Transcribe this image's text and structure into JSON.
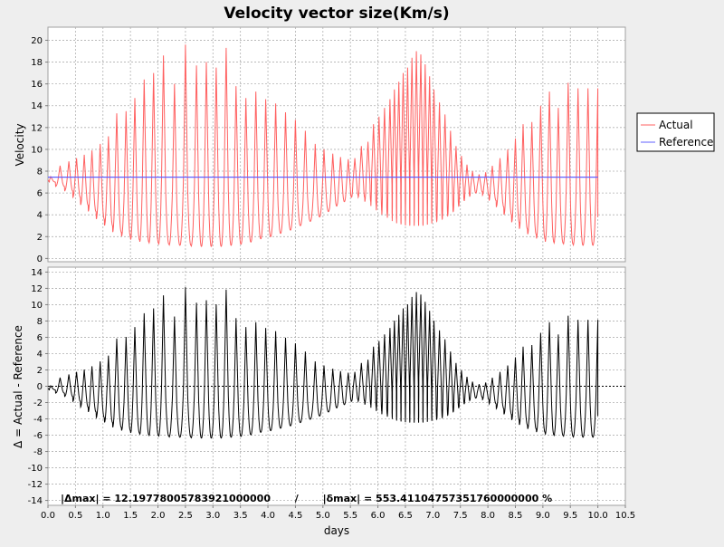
{
  "chart_data": {
    "type": "line",
    "title": "Velocity vector size(Km/s)",
    "xlabel": "days",
    "x_ticks": [
      0.0,
      0.5,
      1.0,
      1.5,
      2.0,
      2.5,
      3.0,
      3.5,
      4.0,
      4.5,
      5.0,
      5.5,
      6.0,
      6.5,
      7.0,
      7.5,
      8.0,
      8.5,
      9.0,
      9.5,
      10.0,
      10.5
    ],
    "x_tick_labels": [
      "0.0",
      "0.5",
      "1.0",
      "1.5",
      "2.0",
      "2.5",
      "3.0",
      "3.5",
      "4.0",
      "4.5",
      "5.0",
      "5.5",
      "6.0",
      "6.5",
      "7.0",
      "7.5",
      "8.0",
      "8.5",
      "9.0",
      "9.5",
      "10.0",
      "10.5"
    ],
    "xlim": [
      0,
      10.5
    ],
    "grid": true,
    "legend_position": "right",
    "panels": [
      {
        "ylabel": "Velocity",
        "ylim": [
          -0.3,
          21.2
        ],
        "y_ticks": [
          0,
          2,
          4,
          6,
          8,
          10,
          12,
          14,
          16,
          18,
          20
        ],
        "y_tick_labels": [
          "0",
          "2",
          "4",
          "6",
          "8",
          "10",
          "12",
          "14",
          "16",
          "18",
          "20"
        ],
        "series": [
          {
            "name": "Actual",
            "color": "#ff6060",
            "peak_x": [
              0.05,
              0.22,
              0.38,
              0.52,
              0.66,
              0.8,
              0.95,
              1.1,
              1.25,
              1.42,
              1.58,
              1.75,
              1.92,
              2.1,
              2.3,
              2.5,
              2.7,
              2.88,
              3.06,
              3.24,
              3.42,
              3.6,
              3.78,
              3.96,
              4.14,
              4.32,
              4.5,
              4.68,
              4.86,
              5.02,
              5.18,
              5.32,
              5.46,
              5.58,
              5.7,
              5.82,
              5.92,
              6.02,
              6.12,
              6.22,
              6.3,
              6.38,
              6.46,
              6.54,
              6.62,
              6.7,
              6.78,
              6.86,
              6.94,
              7.02,
              7.12,
              7.22,
              7.32,
              7.42,
              7.52,
              7.62,
              7.72,
              7.84,
              7.96,
              8.08,
              8.22,
              8.36,
              8.5,
              8.64,
              8.8,
              8.96,
              9.12,
              9.28,
              9.46,
              9.64,
              9.82,
              10.0
            ],
            "peak_y": [
              7.5,
              8.5,
              8.9,
              9.2,
              9.5,
              9.9,
              10.5,
              11.2,
              13.3,
              13.5,
              14.7,
              16.4,
              17.0,
              18.6,
              16.0,
              19.6,
              17.7,
              18.0,
              17.5,
              19.3,
              15.8,
              14.7,
              15.3,
              14.6,
              14.2,
              13.4,
              12.7,
              11.7,
              10.5,
              10.0,
              9.6,
              9.3,
              9.1,
              9.2,
              10.3,
              10.7,
              12.3,
              13.0,
              13.8,
              14.6,
              15.5,
              16.2,
              17.0,
              17.5,
              18.4,
              19.0,
              18.7,
              17.8,
              16.7,
              15.5,
              14.3,
              13.2,
              11.7,
              10.3,
              9.4,
              8.6,
              8.0,
              7.7,
              7.9,
              8.5,
              9.2,
              10.0,
              11.0,
              12.3,
              12.5,
              14.0,
              15.3,
              13.8,
              16.1,
              15.6,
              15.6,
              15.6
            ],
            "trough_y": [
              7.0,
              6.6,
              6.2,
              5.6,
              4.9,
              4.3,
              3.6,
              3.0,
              2.4,
              2.0,
              1.7,
              1.5,
              1.4,
              1.3,
              1.2,
              1.2,
              1.1,
              1.1,
              1.1,
              1.2,
              1.3,
              1.5,
              1.8,
              2.0,
              2.3,
              2.6,
              3.0,
              3.4,
              3.8,
              4.3,
              4.8,
              5.2,
              5.6,
              5.8,
              5.6,
              5.2,
              4.8,
              4.4,
              4.0,
              3.7,
              3.4,
              3.2,
              3.1,
              3.0,
              3.0,
              3.0,
              3.0,
              3.1,
              3.2,
              3.4,
              3.6,
              3.9,
              4.3,
              4.8,
              5.3,
              5.7,
              6.0,
              6.1,
              5.8,
              5.3,
              4.7,
              4.0,
              3.3,
              2.7,
              2.2,
              1.8,
              1.5,
              1.4,
              1.3,
              1.2,
              1.2,
              3.8
            ]
          },
          {
            "name": "Reference",
            "color": "#6060ff",
            "x": [
              0,
              10
            ],
            "y": [
              7.45,
              7.45
            ]
          }
        ]
      },
      {
        "ylabel": "Δ = Actual - Reference",
        "ylim": [
          -14.6,
          14.6
        ],
        "y_ticks": [
          -14,
          -12,
          -10,
          -8,
          -6,
          -4,
          -2,
          0,
          2,
          4,
          6,
          8,
          10,
          12,
          14
        ],
        "y_tick_labels": [
          "-14",
          "-12",
          "-10",
          "-8",
          "-6",
          "-4",
          "-2",
          "0",
          "2",
          "4",
          "6",
          "8",
          "10",
          "12",
          "14"
        ],
        "series": [
          {
            "name": "Δ",
            "color": "#000000",
            "derived_from": "Actual - Reference"
          },
          {
            "name": "zero",
            "color": "#000000",
            "dashed": true,
            "y": 0
          }
        ],
        "annotation": "|Δmax| = 12.19778005783921000000       /       |δmax| = 553.41104757351760000000 %"
      }
    ]
  }
}
